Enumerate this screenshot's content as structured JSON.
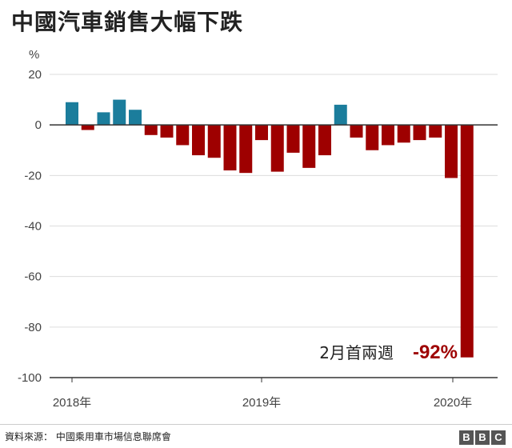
{
  "chart_data": {
    "type": "bar",
    "title": "中國汽車銷售大幅下跌",
    "ylabel": "%",
    "ylim": [
      -100,
      20
    ],
    "yticks": [
      20,
      0,
      -20,
      -40,
      -60,
      -80,
      -100
    ],
    "grid": true,
    "x_tick_labels": [
      "2018年",
      "2019年",
      "2020年"
    ],
    "series": [
      {
        "values": [
          9,
          -2,
          5,
          10,
          6,
          -4,
          -5,
          -8,
          -12,
          -13,
          -18,
          -19,
          -6,
          -18.5,
          -11,
          -17,
          -12,
          8,
          -5,
          -10,
          -8,
          -7,
          -6,
          -5,
          -21,
          -92
        ],
        "colors": [
          "#1b7d9c",
          "#9e0000",
          "#1b7d9c",
          "#1b7d9c",
          "#1b7d9c",
          "#9e0000",
          "#9e0000",
          "#9e0000",
          "#9e0000",
          "#9e0000",
          "#9e0000",
          "#9e0000",
          "#9e0000",
          "#9e0000",
          "#9e0000",
          "#9e0000",
          "#9e0000",
          "#1b7d9c",
          "#9e0000",
          "#9e0000",
          "#9e0000",
          "#9e0000",
          "#9e0000",
          "#9e0000",
          "#9e0000",
          "#9e0000"
        ]
      }
    ],
    "annotation": {
      "text": "2月首兩週",
      "value": "-92%"
    }
  },
  "colors": {
    "positive": "#1b7d9c",
    "negative": "#9e0000",
    "grid": "#dddddd",
    "axis": "#333333"
  },
  "footer": {
    "source": "資料來源： 中國乘用車市場信息聯席會",
    "logo": [
      "B",
      "B",
      "C"
    ]
  }
}
